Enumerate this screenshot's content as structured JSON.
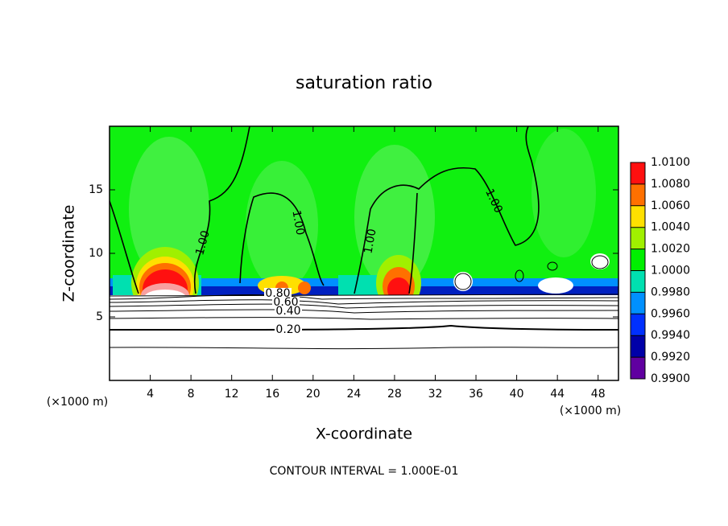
{
  "chart_data": {
    "type": "contour",
    "title": "saturation ratio",
    "x_label": "X-coordinate",
    "y_label": "Z-coordinate",
    "x_unit_label": "(×1000 m)",
    "y_unit_label": "(×1000 m)",
    "xlim": [
      0,
      50
    ],
    "ylim": [
      0,
      20
    ],
    "xticks": [
      4,
      8,
      12,
      16,
      20,
      24,
      28,
      32,
      36,
      40,
      44,
      48
    ],
    "yticks": [
      5,
      10,
      15
    ],
    "colorbar": {
      "levels": [
        {
          "value": 0.99,
          "label": "0.9900"
        },
        {
          "value": 0.992,
          "label": "0.9920"
        },
        {
          "value": 0.994,
          "label": "0.9940"
        },
        {
          "value": 0.996,
          "label": "0.9960"
        },
        {
          "value": 0.998,
          "label": "0.9980"
        },
        {
          "value": 1,
          "label": "1.0000"
        },
        {
          "value": 1.002,
          "label": "1.0020"
        },
        {
          "value": 1.004,
          "label": "1.0040"
        },
        {
          "value": 1.006,
          "label": "1.0060"
        },
        {
          "value": 1.008,
          "label": "1.0080"
        },
        {
          "value": 1.01,
          "label": "1.0100"
        }
      ],
      "colors": [
        "#6000a0",
        "#0000a8",
        "#0030ff",
        "#0090ff",
        "#00e0b0",
        "#00f000",
        "#a0f000",
        "#ffe000",
        "#ff7000",
        "#ff1010"
      ]
    },
    "contour_labels": [
      {
        "value": 1,
        "label": "1.00"
      },
      {
        "value": 1,
        "label": "1.00"
      },
      {
        "value": 1,
        "label": "1.00"
      },
      {
        "value": 1,
        "label": "1.00"
      },
      {
        "value": 0.8,
        "label": "0.80"
      },
      {
        "value": 0.6,
        "label": "0.60"
      },
      {
        "value": 0.4,
        "label": "0.40"
      },
      {
        "value": 0.2,
        "label": "0.20"
      }
    ],
    "footer": "CONTOUR INTERVAL = 1.000E-01"
  }
}
